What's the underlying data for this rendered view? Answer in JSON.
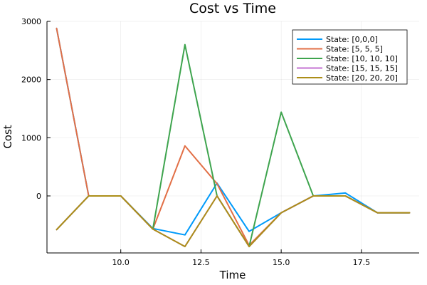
{
  "chart_data": {
    "type": "line",
    "title": "Cost vs Time",
    "xlabel": "Time",
    "ylabel": "Cost",
    "xlim": [
      7.7,
      19.3
    ],
    "ylim": [
      -980,
      3000
    ],
    "xticks": [
      10.0,
      12.5,
      15.0,
      17.5
    ],
    "xtick_labels": [
      "10.0",
      "12.5",
      "15.0",
      "17.5"
    ],
    "yticks": [
      0,
      1000,
      2000,
      3000
    ],
    "ytick_labels": [
      "0",
      "1000",
      "2000",
      "3000"
    ],
    "grid": true,
    "legend_position": "top-right",
    "x": [
      8,
      9,
      10,
      11,
      12,
      13,
      14,
      15,
      16,
      17,
      18,
      19
    ],
    "series": [
      {
        "name": "State: [0,0,0]",
        "color": "#009AFA",
        "values": [
          2880,
          0,
          0,
          -560,
          -670,
          220,
          -610,
          -290,
          0,
          50,
          -290,
          -290
        ]
      },
      {
        "name": "State: [5, 5, 5]",
        "color": "#E26F46",
        "values": [
          2880,
          0,
          0,
          -570,
          860,
          210,
          -850,
          -290,
          0,
          0,
          -290,
          -290
        ]
      },
      {
        "name": "State: [10, 10, 10]",
        "color": "#3EA44E",
        "values": [
          -580,
          0,
          0,
          -570,
          2600,
          0,
          -870,
          1440,
          0,
          0,
          -290,
          -290
        ]
      },
      {
        "name": "State: [15, 15, 15]",
        "color": "#C371D2",
        "values": [
          -580,
          0,
          0,
          -570,
          -870,
          0,
          -870,
          -290,
          0,
          0,
          -290,
          -290
        ]
      },
      {
        "name": "State: [20, 20, 20]",
        "color": "#AC8E18",
        "values": [
          -580,
          0,
          0,
          -570,
          -870,
          0,
          -870,
          -290,
          0,
          0,
          -290,
          -290
        ]
      }
    ]
  }
}
